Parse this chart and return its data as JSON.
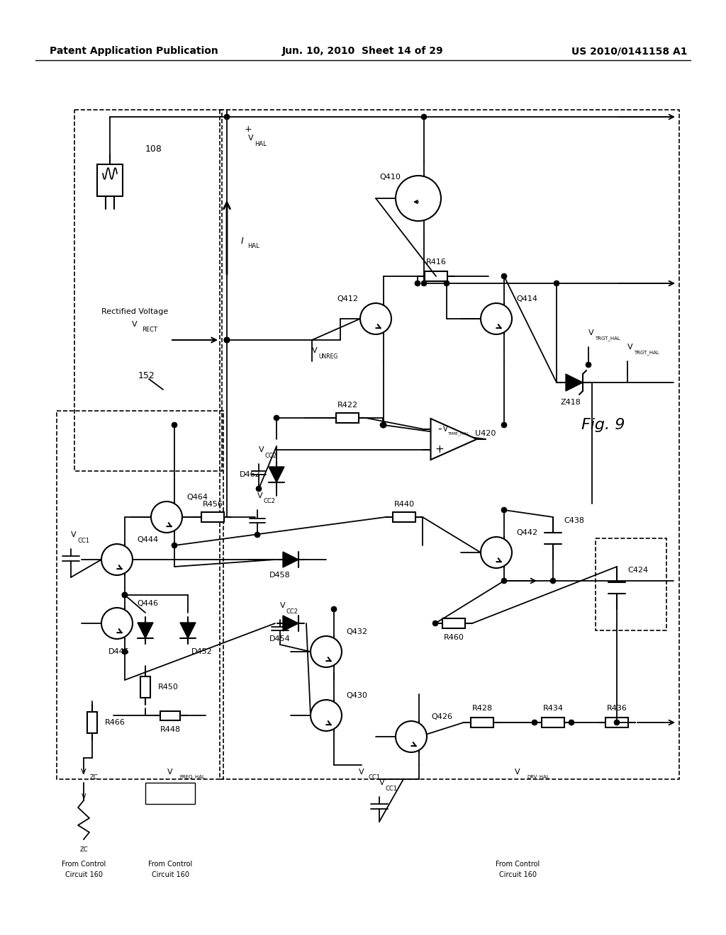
{
  "background_color": "#ffffff",
  "header_left": "Patent Application Publication",
  "header_center": "Jun. 10, 2010  Sheet 14 of 29",
  "header_right": "US 2010/0141158 A1",
  "fig_label": "Fig. 9",
  "header_fontsize": 10,
  "fig_fontsize": 16
}
